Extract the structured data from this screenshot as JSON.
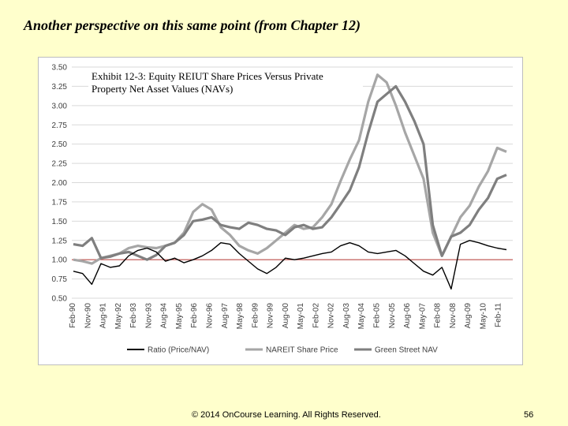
{
  "slide": {
    "title": "Another perspective on this same point (from Chapter 12)",
    "footer": "© 2014 OnCourse Learning. All Rights Reserved.",
    "page_number": "56"
  },
  "chart_data": {
    "type": "line",
    "title": "Exhibit 12-3: Equity REIUT Share Prices Versus Private Property Net Asset Values (NAVs)",
    "title_lines": [
      "Exhibit 12-3: Equity REIUT Share Prices Versus Private",
      "Property Net Asset Values (NAVs)"
    ],
    "ylim": [
      0.5,
      3.5
    ],
    "yticks": [
      "3.50",
      "3.25",
      "3.00",
      "2.75",
      "2.50",
      "2.25",
      "2.00",
      "1.75",
      "1.50",
      "1.25",
      "1.00",
      "0.75",
      "0.50"
    ],
    "xticks": [
      "Feb-90",
      "Nov-90",
      "Aug-91",
      "May-92",
      "Feb-93",
      "Nov-93",
      "Aug-94",
      "May-95",
      "Feb-96",
      "Nov-96",
      "Aug-97",
      "May-98",
      "Feb-99",
      "Nov-99",
      "Aug-00",
      "May-01",
      "Feb-02",
      "Nov-02",
      "Aug-03",
      "May-04",
      "Feb-05",
      "Nov-05",
      "Aug-06",
      "May-07",
      "Feb-08",
      "Nov-08",
      "Aug-09",
      "May-10",
      "Feb-11"
    ],
    "reference_line": {
      "y": 1.0,
      "color": "#C0504D"
    },
    "legend_position": "bottom",
    "series": [
      {
        "name": "Ratio (Price/NAV)",
        "color": "#000000",
        "values": [
          0.85,
          0.82,
          0.68,
          0.95,
          0.9,
          0.92,
          1.05,
          1.12,
          1.15,
          1.1,
          0.98,
          1.02,
          0.96,
          1.0,
          1.05,
          1.12,
          1.22,
          1.2,
          1.08,
          0.98,
          0.88,
          0.82,
          0.9,
          1.02,
          1.0,
          1.02,
          1.05,
          1.08,
          1.1,
          1.18,
          1.22,
          1.18,
          1.1,
          1.08,
          1.1,
          1.12,
          1.05,
          0.95,
          0.85,
          0.8,
          0.9,
          0.62,
          1.2,
          1.25,
          1.22,
          1.18,
          1.15,
          1.13
        ]
      },
      {
        "name": "NAREIT Share Price",
        "color": "#A6A6A6",
        "values": [
          1.0,
          0.98,
          0.95,
          1.02,
          1.05,
          1.08,
          1.15,
          1.18,
          1.16,
          1.15,
          1.18,
          1.22,
          1.35,
          1.62,
          1.72,
          1.65,
          1.42,
          1.32,
          1.18,
          1.12,
          1.08,
          1.15,
          1.25,
          1.35,
          1.45,
          1.4,
          1.42,
          1.55,
          1.72,
          2.02,
          2.3,
          2.55,
          3.05,
          3.4,
          3.3,
          3.0,
          2.65,
          2.35,
          2.05,
          1.35,
          1.05,
          1.3,
          1.55,
          1.7,
          1.95,
          2.15,
          2.45,
          2.4
        ]
      },
      {
        "name": "Green Street NAV",
        "color": "#7F7F7F",
        "values": [
          1.2,
          1.18,
          1.28,
          1.02,
          1.04,
          1.08,
          1.1,
          1.05,
          1.0,
          1.06,
          1.18,
          1.22,
          1.32,
          1.5,
          1.52,
          1.55,
          1.45,
          1.42,
          1.4,
          1.48,
          1.45,
          1.4,
          1.38,
          1.32,
          1.42,
          1.45,
          1.4,
          1.42,
          1.55,
          1.72,
          1.9,
          2.2,
          2.65,
          3.05,
          3.15,
          3.25,
          3.05,
          2.8,
          2.5,
          1.45,
          1.05,
          1.3,
          1.35,
          1.45,
          1.65,
          1.8,
          2.05,
          2.1
        ]
      }
    ]
  }
}
